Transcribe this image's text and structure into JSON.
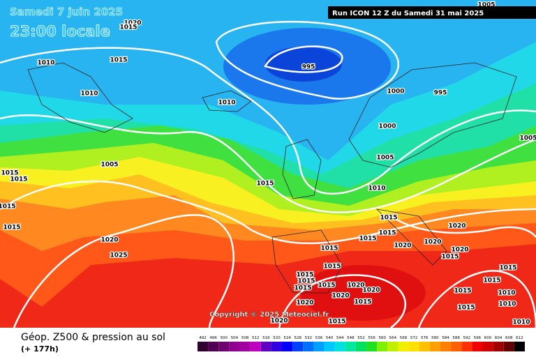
{
  "header": {
    "date": "Samedi 7 juin 2025",
    "time": "23:00 locale",
    "run": "Run ICON 12 Z du Samedi 31 mai 2025"
  },
  "map": {
    "isobar_labels": [
      "1020",
      "1015",
      "1010",
      "1015",
      "1010",
      "1010",
      "995",
      "1000",
      "995",
      "1000",
      "1005",
      "1010",
      "1015",
      "1005",
      "1015",
      "1015",
      "1015",
      "1015",
      "1020",
      "1025",
      "1015",
      "1015",
      "1015",
      "1020",
      "1020",
      "1020",
      "1020",
      "1015",
      "1015",
      "1015",
      "1015",
      "1015",
      "1015",
      "1015",
      "1020",
      "1020",
      "1020",
      "1015",
      "1020",
      "1015",
      "1015",
      "1015",
      "1015",
      "1010",
      "1010",
      "1010",
      "1005",
      "1005",
      "1015",
      "1020"
    ]
  },
  "copyright": "Copyright © 2025 Meteociel.fr",
  "footer": {
    "title": "Géop. Z500 & pression au sol",
    "lead": "(+ 177h)"
  },
  "scale": {
    "labels": [
      492,
      496,
      500,
      504,
      508,
      512,
      516,
      520,
      524,
      528,
      532,
      536,
      540,
      544,
      548,
      552,
      556,
      560,
      564,
      568,
      572,
      576,
      580,
      584,
      588,
      592,
      596,
      600,
      604,
      608,
      612
    ],
    "colors": [
      "#300030",
      "#500050",
      "#700070",
      "#900090",
      "#a000a0",
      "#c000c0",
      "#6000c0",
      "#3000e0",
      "#0000ff",
      "#0040ff",
      "#0070ff",
      "#00a0ff",
      "#00c8ff",
      "#00e0e0",
      "#00e8a0",
      "#00e060",
      "#20e020",
      "#80f000",
      "#c0f000",
      "#f0f000",
      "#ffe000",
      "#ffc000",
      "#ffa000",
      "#ff8000",
      "#ff6000",
      "#ff3000",
      "#f00000",
      "#d00000",
      "#a00000",
      "#600000",
      "#000000"
    ]
  }
}
